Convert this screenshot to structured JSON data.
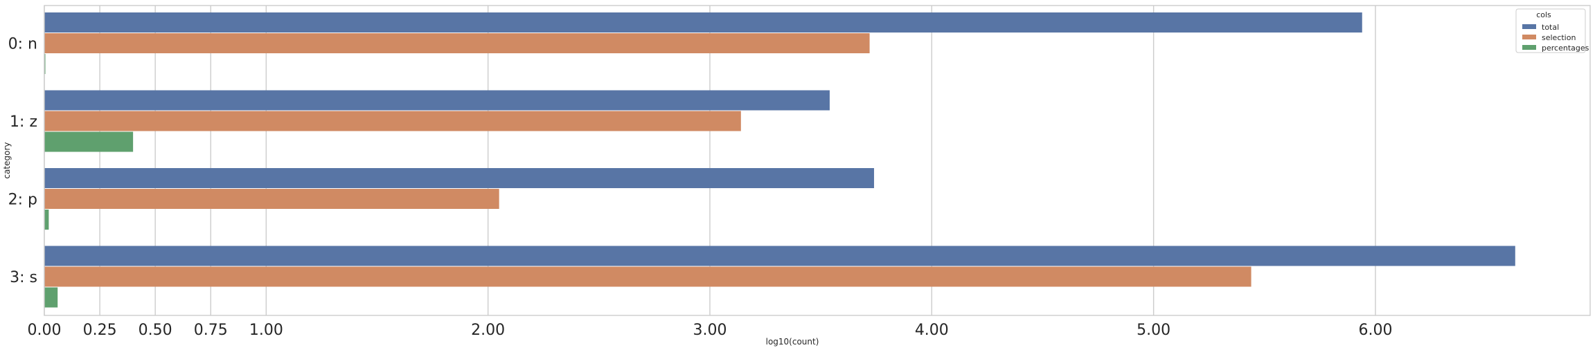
{
  "chart_data": {
    "type": "bar",
    "orientation": "horizontal",
    "categories": [
      "0: n",
      "1: z",
      "2: p",
      "3: s"
    ],
    "series": [
      {
        "name": "total",
        "color": "#5875a5",
        "values": [
          5.94,
          3.54,
          3.74,
          6.63
        ]
      },
      {
        "name": "selection",
        "color": "#d08a63",
        "values": [
          3.72,
          3.14,
          2.05,
          5.44
        ]
      },
      {
        "name": "percentages",
        "color": "#5fa06e",
        "values": [
          0.003,
          0.4,
          0.02,
          0.06
        ]
      }
    ],
    "xlabel": "log10(count)",
    "ylabel": "category",
    "xlim": [
      0,
      6.98
    ],
    "xticks": [
      0,
      0.25,
      0.5,
      0.75,
      1,
      2,
      3,
      4,
      5,
      6
    ],
    "xtick_labels": [
      "0.00",
      "0.25",
      "0.50",
      "0.75",
      "1.00",
      "2.00",
      "3.00",
      "4.00",
      "5.00",
      "6.00"
    ],
    "grid": "x",
    "legend": {
      "title": "cols",
      "placement": "top-right"
    }
  }
}
